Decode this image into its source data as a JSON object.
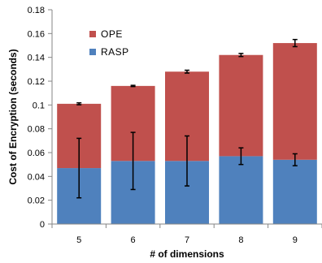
{
  "chart_data": {
    "type": "bar",
    "stacked": true,
    "categories": [
      "5",
      "6",
      "7",
      "8",
      "9"
    ],
    "series": [
      {
        "name": "RASP",
        "color": "#4f81bd",
        "values": [
          0.047,
          0.053,
          0.053,
          0.057,
          0.054
        ],
        "error": [
          0.025,
          0.024,
          0.021,
          0.007,
          0.005
        ]
      },
      {
        "name": "OPE",
        "color": "#c0504d",
        "values": [
          0.054,
          0.063,
          0.075,
          0.085,
          0.098
        ],
        "error": [
          0.0008,
          0.0005,
          0.0012,
          0.0013,
          0.003
        ]
      }
    ],
    "xlabel": "# of dimensions",
    "ylabel": "Cost of Encryption (seconds)",
    "ylim": [
      0,
      0.18
    ],
    "yticks": [
      "0",
      "0.02",
      "0.04",
      "0.06",
      "0.08",
      "0.1",
      "0.12",
      "0.14",
      "0.16",
      "0.18"
    ],
    "grid": false,
    "legend_position": "top-left"
  }
}
